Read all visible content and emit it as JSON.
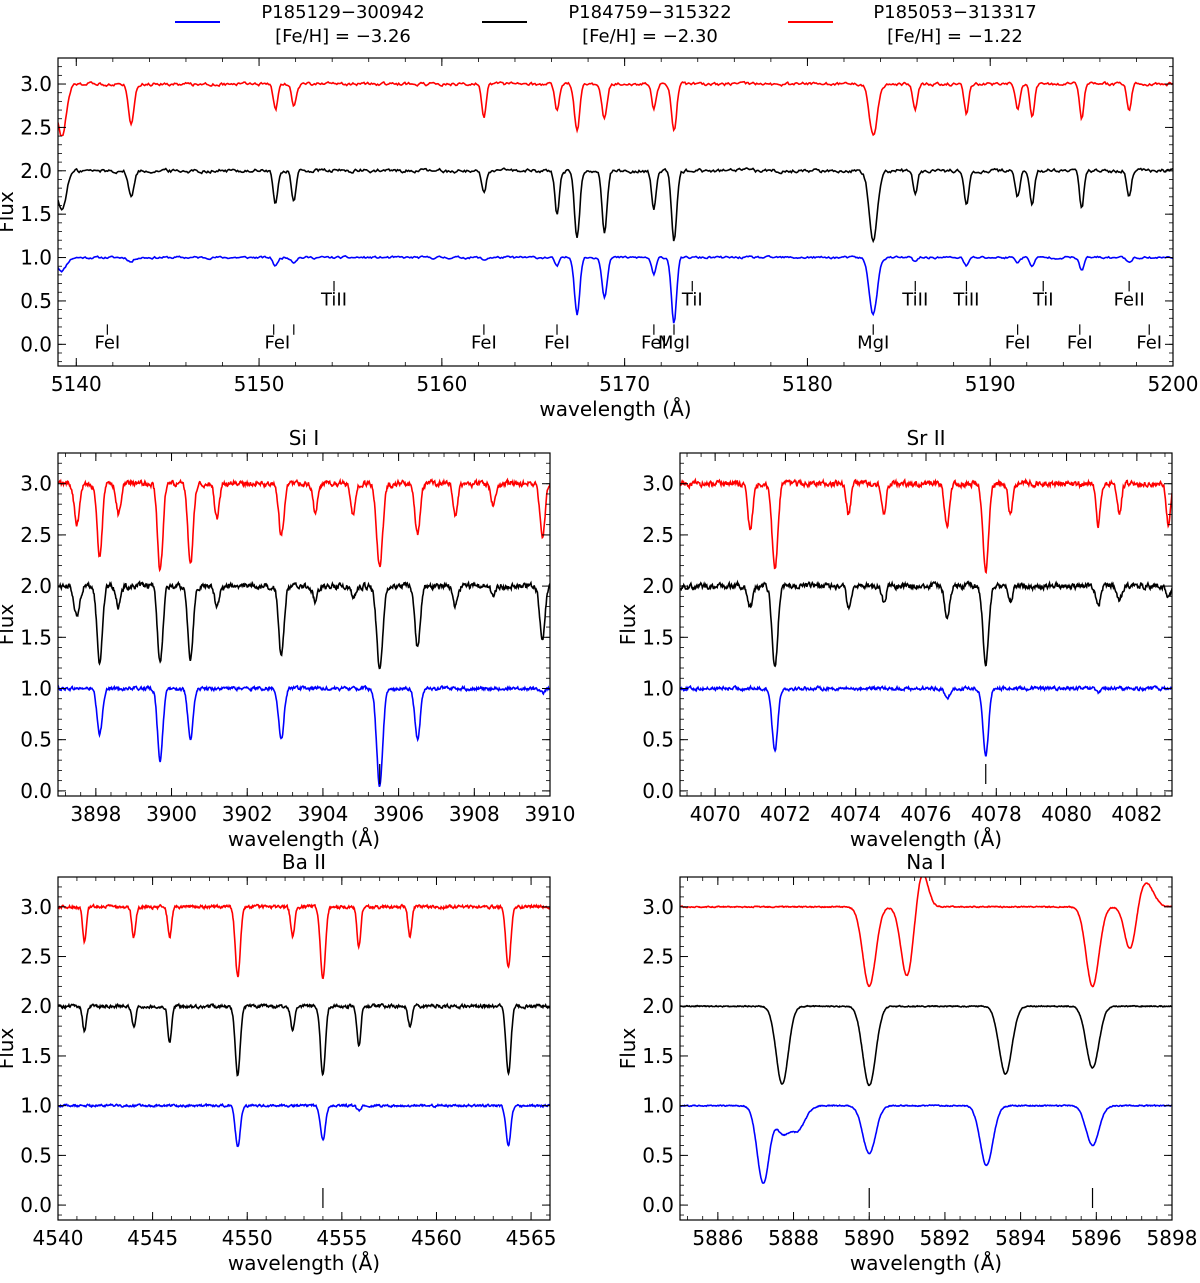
{
  "legend": [
    {
      "name": "P185129−300942",
      "feh": "[Fe/H] = −3.26",
      "color": "#0000ff"
    },
    {
      "name": "P184759−315322",
      "feh": "[Fe/H] = −2.30",
      "color": "#000000"
    },
    {
      "name": "P185053−313317",
      "feh": "[Fe/H] = −1.22",
      "color": "#ff0000"
    }
  ],
  "chart_data": [
    {
      "id": "main",
      "type": "line",
      "title": "",
      "xlabel": "wavelength (Å)",
      "ylabel": "Flux",
      "xlim": [
        5139,
        5200
      ],
      "ylim": [
        -0.25,
        3.3
      ],
      "xticks": [
        5140,
        5150,
        5160,
        5170,
        5180,
        5190,
        5200
      ],
      "yticks": [
        0.0,
        0.5,
        1.0,
        1.5,
        2.0,
        2.5,
        3.0
      ],
      "series": [
        {
          "name": "P185129−300942",
          "color": "#0000ff",
          "offset": 1.0,
          "noise": 0.025,
          "scale": 1.0
        },
        {
          "name": "P184759−315322",
          "color": "#000000",
          "offset": 2.0,
          "noise": 0.04,
          "scale": 1.0
        },
        {
          "name": "P185053−313317",
          "color": "#ff0000",
          "offset": 3.0,
          "noise": 0.035,
          "scale": 1.0
        }
      ],
      "lines": [
        {
          "x": 5139.2,
          "d": [
            0.15,
            0.45,
            0.6
          ],
          "w": 0.25
        },
        {
          "x": 5143.0,
          "d": [
            0.05,
            0.3,
            0.45
          ],
          "w": 0.15
        },
        {
          "x": 5150.9,
          "d": [
            0.1,
            0.4,
            0.3
          ],
          "w": 0.12
        },
        {
          "x": 5151.9,
          "d": [
            0.05,
            0.35,
            0.25
          ],
          "w": 0.12
        },
        {
          "x": 5162.3,
          "d": [
            0.03,
            0.25,
            0.4
          ],
          "w": 0.12
        },
        {
          "x": 5166.3,
          "d": [
            0.1,
            0.5,
            0.3
          ],
          "w": 0.12
        },
        {
          "x": 5167.4,
          "d": [
            0.65,
            0.78,
            0.55
          ],
          "w": 0.14
        },
        {
          "x": 5168.9,
          "d": [
            0.45,
            0.7,
            0.4
          ],
          "w": 0.14
        },
        {
          "x": 5171.6,
          "d": [
            0.2,
            0.45,
            0.3
          ],
          "w": 0.12
        },
        {
          "x": 5172.7,
          "d": [
            0.75,
            0.8,
            0.55
          ],
          "w": 0.14
        },
        {
          "x": 5183.6,
          "d": [
            0.65,
            0.78,
            0.6
          ],
          "w": 0.22
        },
        {
          "x": 5185.9,
          "d": [
            0.05,
            0.25,
            0.3
          ],
          "w": 0.12
        },
        {
          "x": 5188.7,
          "d": [
            0.1,
            0.4,
            0.35
          ],
          "w": 0.12
        },
        {
          "x": 5191.5,
          "d": [
            0.05,
            0.3,
            0.3
          ],
          "w": 0.12
        },
        {
          "x": 5192.3,
          "d": [
            0.1,
            0.4,
            0.4
          ],
          "w": 0.12
        },
        {
          "x": 5195.0,
          "d": [
            0.15,
            0.45,
            0.4
          ],
          "w": 0.12
        },
        {
          "x": 5197.6,
          "d": [
            0.05,
            0.3,
            0.3
          ],
          "w": 0.12
        }
      ],
      "ids": [
        {
          "label": "FeI",
          "x": 5141.7,
          "row": 0
        },
        {
          "label": "FeI",
          "x": 5151.0,
          "row": 0,
          "ticks": [
            5150.8,
            5151.9
          ]
        },
        {
          "label": "FeI",
          "x": 5162.3,
          "row": 0
        },
        {
          "label": "FeI",
          "x": 5166.3,
          "row": 0
        },
        {
          "label": "FeI",
          "x": 5171.6,
          "row": 0
        },
        {
          "label": "MgI",
          "x": 5172.7,
          "row": 0
        },
        {
          "label": "MgI",
          "x": 5183.6,
          "row": 0
        },
        {
          "label": "FeI",
          "x": 5191.5,
          "row": 0
        },
        {
          "label": "FeI",
          "x": 5194.9,
          "row": 0
        },
        {
          "label": "FeI",
          "x": 5198.7,
          "row": 0
        },
        {
          "label": "TiII",
          "x": 5154.1,
          "row": 1
        },
        {
          "label": "TiI",
          "x": 5173.7,
          "row": 1
        },
        {
          "label": "TiII",
          "x": 5185.9,
          "row": 1
        },
        {
          "label": "TiII",
          "x": 5188.7,
          "row": 1
        },
        {
          "label": "TiI",
          "x": 5192.9,
          "row": 1
        },
        {
          "label": "FeII",
          "x": 5197.6,
          "row": 1
        }
      ]
    },
    {
      "id": "si",
      "type": "line",
      "title": "Si I",
      "xlabel": "wavelength (Å)",
      "ylabel": "Flux",
      "xlim": [
        3897,
        3910
      ],
      "ylim": [
        -0.05,
        3.3
      ],
      "xticks": [
        3898,
        3900,
        3902,
        3904,
        3906,
        3908,
        3910
      ],
      "yticks": [
        0.0,
        0.5,
        1.0,
        1.5,
        2.0,
        2.5,
        3.0
      ],
      "marker": 3905.5,
      "series": [
        {
          "name": "P185129−300942",
          "color": "#0000ff",
          "offset": 1.0,
          "noise": 0.03,
          "scale": 1.0
        },
        {
          "name": "P184759−315322",
          "color": "#000000",
          "offset": 2.0,
          "noise": 0.05,
          "scale": 1.0
        },
        {
          "name": "P185053−313317",
          "color": "#ff0000",
          "offset": 3.0,
          "noise": 0.05,
          "scale": 1.0
        }
      ],
      "lines": [
        {
          "x": 3897.5,
          "d": [
            0.0,
            0.3,
            0.4
          ],
          "w": 0.07
        },
        {
          "x": 3898.1,
          "d": [
            0.45,
            0.75,
            0.7
          ],
          "w": 0.07
        },
        {
          "x": 3898.6,
          "d": [
            0.0,
            0.2,
            0.3
          ],
          "w": 0.06
        },
        {
          "x": 3899.7,
          "d": [
            0.7,
            0.75,
            0.85
          ],
          "w": 0.07
        },
        {
          "x": 3900.5,
          "d": [
            0.5,
            0.7,
            0.8
          ],
          "w": 0.07
        },
        {
          "x": 3901.2,
          "d": [
            0.0,
            0.2,
            0.35
          ],
          "w": 0.06
        },
        {
          "x": 3902.9,
          "d": [
            0.5,
            0.7,
            0.5
          ],
          "w": 0.07
        },
        {
          "x": 3903.8,
          "d": [
            0.0,
            0.15,
            0.3
          ],
          "w": 0.06
        },
        {
          "x": 3904.8,
          "d": [
            0.0,
            0.1,
            0.3
          ],
          "w": 0.06
        },
        {
          "x": 3905.5,
          "d": [
            0.95,
            0.8,
            0.8
          ],
          "w": 0.08
        },
        {
          "x": 3906.5,
          "d": [
            0.5,
            0.6,
            0.5
          ],
          "w": 0.07
        },
        {
          "x": 3907.5,
          "d": [
            0.0,
            0.2,
            0.3
          ],
          "w": 0.06
        },
        {
          "x": 3908.5,
          "d": [
            0.0,
            0.1,
            0.2
          ],
          "w": 0.06
        },
        {
          "x": 3909.8,
          "d": [
            0.05,
            0.5,
            0.5
          ],
          "w": 0.07
        }
      ]
    },
    {
      "id": "sr",
      "type": "line",
      "title": "Sr II",
      "xlabel": "wavelength (Å)",
      "ylabel": "Flux",
      "xlim": [
        4069,
        4083
      ],
      "ylim": [
        -0.05,
        3.3
      ],
      "xticks": [
        4070,
        4072,
        4074,
        4076,
        4078,
        4080,
        4082
      ],
      "yticks": [
        0.0,
        0.5,
        1.0,
        1.5,
        2.0,
        2.5,
        3.0
      ],
      "marker": 4077.7,
      "series": [
        {
          "name": "P185129−300942",
          "color": "#0000ff",
          "offset": 1.0,
          "noise": 0.03,
          "scale": 1.0
        },
        {
          "name": "P184759−315322",
          "color": "#000000",
          "offset": 2.0,
          "noise": 0.05,
          "scale": 1.0
        },
        {
          "name": "P185053−313317",
          "color": "#ff0000",
          "offset": 3.0,
          "noise": 0.05,
          "scale": 1.0
        }
      ],
      "lines": [
        {
          "x": 4071.0,
          "d": [
            0.0,
            0.2,
            0.45
          ],
          "w": 0.07
        },
        {
          "x": 4071.7,
          "d": [
            0.6,
            0.78,
            0.85
          ],
          "w": 0.08
        },
        {
          "x": 4073.8,
          "d": [
            0.0,
            0.2,
            0.3
          ],
          "w": 0.06
        },
        {
          "x": 4074.8,
          "d": [
            0.0,
            0.15,
            0.3
          ],
          "w": 0.06
        },
        {
          "x": 4076.6,
          "d": [
            0.1,
            0.3,
            0.4
          ],
          "w": 0.07
        },
        {
          "x": 4077.7,
          "d": [
            0.65,
            0.75,
            0.85
          ],
          "w": 0.08
        },
        {
          "x": 4078.4,
          "d": [
            0.0,
            0.15,
            0.3
          ],
          "w": 0.06
        },
        {
          "x": 4080.9,
          "d": [
            0.05,
            0.2,
            0.4
          ],
          "w": 0.06
        },
        {
          "x": 4081.5,
          "d": [
            0.0,
            0.15,
            0.3
          ],
          "w": 0.06
        },
        {
          "x": 4082.9,
          "d": [
            0.0,
            0.1,
            0.4
          ],
          "w": 0.06
        }
      ]
    },
    {
      "id": "ba",
      "type": "line",
      "title": "Ba II",
      "xlabel": "wavelength (Å)",
      "ylabel": "Flux",
      "xlim": [
        4540,
        4566
      ],
      "ylim": [
        -0.15,
        3.3
      ],
      "xticks": [
        4540,
        4545,
        4550,
        4555,
        4560,
        4565
      ],
      "yticks": [
        0.0,
        0.5,
        1.0,
        1.5,
        2.0,
        2.5,
        3.0
      ],
      "marker": 4554.0,
      "series": [
        {
          "name": "P185129−300942",
          "color": "#0000ff",
          "offset": 1.0,
          "noise": 0.02,
          "scale": 1.0
        },
        {
          "name": "P184759−315322",
          "color": "#000000",
          "offset": 2.0,
          "noise": 0.03,
          "scale": 1.0
        },
        {
          "name": "P185053−313317",
          "color": "#ff0000",
          "offset": 3.0,
          "noise": 0.03,
          "scale": 1.0
        }
      ],
      "lines": [
        {
          "x": 4541.4,
          "d": [
            0.0,
            0.25,
            0.35
          ],
          "w": 0.1
        },
        {
          "x": 4544.0,
          "d": [
            0.0,
            0.2,
            0.3
          ],
          "w": 0.1
        },
        {
          "x": 4545.9,
          "d": [
            0.0,
            0.35,
            0.3
          ],
          "w": 0.1
        },
        {
          "x": 4549.5,
          "d": [
            0.42,
            0.7,
            0.7
          ],
          "w": 0.13
        },
        {
          "x": 4552.4,
          "d": [
            0.0,
            0.25,
            0.3
          ],
          "w": 0.1
        },
        {
          "x": 4554.0,
          "d": [
            0.35,
            0.7,
            0.72
          ],
          "w": 0.13
        },
        {
          "x": 4555.9,
          "d": [
            0.05,
            0.4,
            0.4
          ],
          "w": 0.1
        },
        {
          "x": 4558.6,
          "d": [
            0.0,
            0.2,
            0.3
          ],
          "w": 0.1
        },
        {
          "x": 4563.8,
          "d": [
            0.4,
            0.68,
            0.6
          ],
          "w": 0.13
        }
      ]
    },
    {
      "id": "na",
      "type": "line",
      "title": "Na I",
      "xlabel": "wavelength (Å)",
      "ylabel": "Flux",
      "xlim": [
        5885,
        5898
      ],
      "ylim": [
        -0.15,
        3.3
      ],
      "xticks": [
        5886,
        5888,
        5890,
        5892,
        5894,
        5896,
        5898
      ],
      "yticks": [
        0.0,
        0.5,
        1.0,
        1.5,
        2.0,
        2.5,
        3.0
      ],
      "markers": [
        5890.0,
        5895.9
      ],
      "series": [
        {
          "name": "P185129−300942",
          "color": "#0000ff",
          "offset": 1.0,
          "noise": 0.01,
          "scale": 1.0
        },
        {
          "name": "P184759−315322",
          "color": "#000000",
          "offset": 2.0,
          "noise": 0.01,
          "scale": 1.0
        },
        {
          "name": "P185053−313317",
          "color": "#ff0000",
          "offset": 3.0,
          "noise": 0.01,
          "scale": 1.0
        }
      ],
      "lines": [
        {
          "x": 5887.2,
          "d": [
            0.78,
            0.0,
            0.0
          ],
          "w": 0.16
        },
        {
          "x": 5887.7,
          "d": [
            0.25,
            0.78,
            0.0
          ],
          "w": 0.16
        },
        {
          "x": 5888.1,
          "d": [
            0.25,
            0.0,
            0.0
          ],
          "w": 0.2
        },
        {
          "x": 5890.0,
          "d": [
            0.48,
            0.8,
            0.8
          ],
          "w": 0.17
        },
        {
          "x": 5891.0,
          "d": [
            0.0,
            0.0,
            0.7
          ],
          "w": 0.16
        },
        {
          "x": 5893.1,
          "d": [
            0.6,
            0.0,
            0.0
          ],
          "w": 0.17
        },
        {
          "x": 5893.6,
          "d": [
            0.0,
            0.68,
            0.0
          ],
          "w": 0.17
        },
        {
          "x": 5895.9,
          "d": [
            0.4,
            0.62,
            0.8
          ],
          "w": 0.17
        },
        {
          "x": 5896.9,
          "d": [
            0.0,
            0.0,
            0.45
          ],
          "w": 0.15
        }
      ],
      "emission": [
        {
          "x": 5891.4,
          "h": 0.35,
          "w": 0.15
        },
        {
          "x": 5897.3,
          "h": 0.25,
          "w": 0.2
        }
      ]
    }
  ]
}
